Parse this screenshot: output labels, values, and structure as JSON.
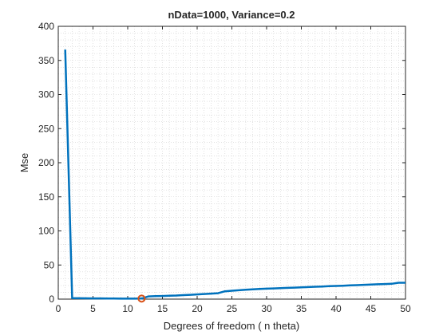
{
  "chart_data": {
    "type": "line",
    "title": "nData=1000, Variance=0.2",
    "xlabel": "Degrees of freedom ( n theta)",
    "ylabel": "Mse",
    "xlim": [
      0,
      50
    ],
    "ylim": [
      0,
      400
    ],
    "xticks": [
      "0",
      "5",
      "10",
      "15",
      "20",
      "25",
      "30",
      "35",
      "40",
      "45",
      "50"
    ],
    "yticks": [
      "0",
      "50",
      "100",
      "150",
      "200",
      "250",
      "300",
      "350",
      "400"
    ],
    "grid": "minor-dotted",
    "series": [
      {
        "color": "#0072BD",
        "x": [
          1,
          2,
          3,
          4,
          5,
          6,
          7,
          8,
          9,
          10,
          11,
          12,
          13,
          14,
          15,
          16,
          17,
          18,
          19,
          20,
          21,
          22,
          23,
          24,
          25,
          26,
          27,
          28,
          29,
          30,
          31,
          32,
          33,
          34,
          35,
          36,
          37,
          38,
          39,
          40,
          41,
          42,
          43,
          44,
          45,
          46,
          47,
          48,
          49,
          50
        ],
        "values": [
          366,
          1.5,
          1.3,
          1.2,
          1.1,
          1.0,
          0.9,
          0.8,
          0.7,
          0.7,
          0.7,
          0.8,
          4.0,
          4.3,
          4.6,
          4.9,
          5.3,
          5.8,
          6.3,
          6.9,
          7.5,
          8.1,
          8.7,
          11.5,
          12.3,
          13.0,
          13.7,
          14.3,
          14.8,
          15.3,
          15.7,
          16.1,
          16.5,
          16.9,
          17.3,
          17.7,
          18.1,
          18.5,
          18.9,
          19.3,
          19.7,
          20.1,
          20.5,
          20.9,
          21.3,
          21.7,
          22.1,
          22.5,
          24.0,
          24.0
        ]
      }
    ],
    "marker": {
      "x": 12,
      "y": 0.8,
      "color": "#D95319",
      "shape": "circle"
    }
  }
}
